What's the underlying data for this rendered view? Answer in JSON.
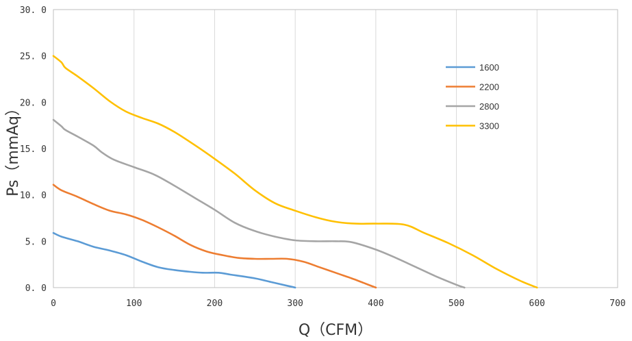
{
  "chart_data": {
    "type": "line",
    "xlabel": "Q（CFM）",
    "ylabel": "Ps（mmAq）",
    "xlim": [
      0,
      700
    ],
    "ylim": [
      0,
      30
    ],
    "x_ticks": [
      "0",
      "100",
      "200",
      "300",
      "400",
      "500",
      "600",
      "700"
    ],
    "y_ticks": [
      "0. 0",
      "5. 0",
      "10. 0",
      "15. 0",
      "20. 0",
      "25. 0",
      "30. 0"
    ],
    "grid": "vertical",
    "legend_position": "top-right",
    "series": [
      {
        "name": "1600",
        "color": "#5b9bd5",
        "points": [
          [
            0,
            5.9
          ],
          [
            10,
            5.5
          ],
          [
            30,
            5.0
          ],
          [
            50,
            4.4
          ],
          [
            70,
            4.0
          ],
          [
            90,
            3.5
          ],
          [
            110,
            2.8
          ],
          [
            130,
            2.2
          ],
          [
            150,
            1.9
          ],
          [
            170,
            1.7
          ],
          [
            185,
            1.6
          ],
          [
            205,
            1.6
          ],
          [
            220,
            1.4
          ],
          [
            250,
            1.0
          ],
          [
            270,
            0.6
          ],
          [
            290,
            0.2
          ],
          [
            300,
            0.0
          ]
        ]
      },
      {
        "name": "2200",
        "color": "#ed7d31",
        "points": [
          [
            0,
            11.1
          ],
          [
            10,
            10.5
          ],
          [
            30,
            9.8
          ],
          [
            50,
            9.0
          ],
          [
            70,
            8.3
          ],
          [
            90,
            7.9
          ],
          [
            110,
            7.3
          ],
          [
            130,
            6.5
          ],
          [
            150,
            5.6
          ],
          [
            170,
            4.6
          ],
          [
            190,
            3.9
          ],
          [
            210,
            3.5
          ],
          [
            230,
            3.2
          ],
          [
            250,
            3.1
          ],
          [
            270,
            3.1
          ],
          [
            290,
            3.1
          ],
          [
            310,
            2.8
          ],
          [
            330,
            2.2
          ],
          [
            350,
            1.6
          ],
          [
            370,
            1.0
          ],
          [
            385,
            0.5
          ],
          [
            400,
            0.0
          ]
        ]
      },
      {
        "name": "2800",
        "color": "#a5a5a5",
        "points": [
          [
            0,
            18.1
          ],
          [
            10,
            17.4
          ],
          [
            15,
            17.0
          ],
          [
            30,
            16.3
          ],
          [
            50,
            15.3
          ],
          [
            60,
            14.6
          ],
          [
            75,
            13.8
          ],
          [
            100,
            13.0
          ],
          [
            125,
            12.2
          ],
          [
            150,
            11.0
          ],
          [
            175,
            9.7
          ],
          [
            200,
            8.4
          ],
          [
            225,
            7.0
          ],
          [
            250,
            6.1
          ],
          [
            275,
            5.5
          ],
          [
            300,
            5.1
          ],
          [
            325,
            5.0
          ],
          [
            350,
            5.0
          ],
          [
            370,
            4.9
          ],
          [
            400,
            4.1
          ],
          [
            425,
            3.2
          ],
          [
            450,
            2.2
          ],
          [
            475,
            1.2
          ],
          [
            500,
            0.3
          ],
          [
            510,
            0.0
          ]
        ]
      },
      {
        "name": "3300",
        "color": "#ffc000",
        "points": [
          [
            0,
            25.0
          ],
          [
            10,
            24.3
          ],
          [
            15,
            23.7
          ],
          [
            30,
            22.8
          ],
          [
            50,
            21.5
          ],
          [
            70,
            20.1
          ],
          [
            90,
            19.0
          ],
          [
            110,
            18.3
          ],
          [
            130,
            17.7
          ],
          [
            150,
            16.8
          ],
          [
            175,
            15.4
          ],
          [
            200,
            13.9
          ],
          [
            225,
            12.3
          ],
          [
            250,
            10.5
          ],
          [
            275,
            9.1
          ],
          [
            300,
            8.3
          ],
          [
            325,
            7.6
          ],
          [
            350,
            7.1
          ],
          [
            375,
            6.9
          ],
          [
            400,
            6.9
          ],
          [
            435,
            6.8
          ],
          [
            460,
            5.9
          ],
          [
            490,
            4.8
          ],
          [
            520,
            3.5
          ],
          [
            550,
            2.0
          ],
          [
            580,
            0.7
          ],
          [
            600,
            0.0
          ]
        ]
      }
    ]
  }
}
